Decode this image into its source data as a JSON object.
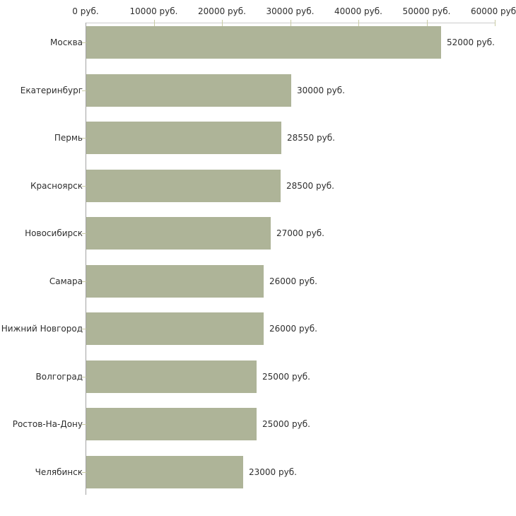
{
  "chart_data": {
    "type": "bar",
    "orientation": "horizontal",
    "categories": [
      "Москва",
      "Екатеринбург",
      "Пермь",
      "Красноярск",
      "Новосибирск",
      "Самара",
      "Нижний Новгород",
      "Волгоград",
      "Ростов-На-Дону",
      "Челябинск"
    ],
    "values": [
      52000,
      30000,
      28550,
      28500,
      27000,
      26000,
      26000,
      25000,
      25000,
      23000
    ],
    "value_labels": [
      "52000 руб.",
      "30000 руб.",
      "28550 руб.",
      "28500 руб.",
      "27000 руб.",
      "26000 руб.",
      "26000 руб.",
      "25000 руб.",
      "25000 руб.",
      "23000 руб."
    ],
    "x_ticks": [
      0,
      10000,
      20000,
      30000,
      40000,
      50000,
      60000
    ],
    "x_tick_labels": [
      "0 руб.",
      "10000 руб.",
      "20000 руб.",
      "30000 руб.",
      "40000 руб.",
      "50000 руб.",
      "60000 руб."
    ],
    "xlim": [
      0,
      60000
    ],
    "unit": "руб.",
    "title": "",
    "xlabel": "",
    "ylabel": "",
    "legend": null,
    "grid": false,
    "bar_color": "#aeb498",
    "tick_color": "#c9cba4",
    "x_axis_line_color": "#cccccc",
    "y_axis_line_color": "#a3a3a3",
    "text_color": "#2e2e2e",
    "background_color": "#ffffff"
  }
}
